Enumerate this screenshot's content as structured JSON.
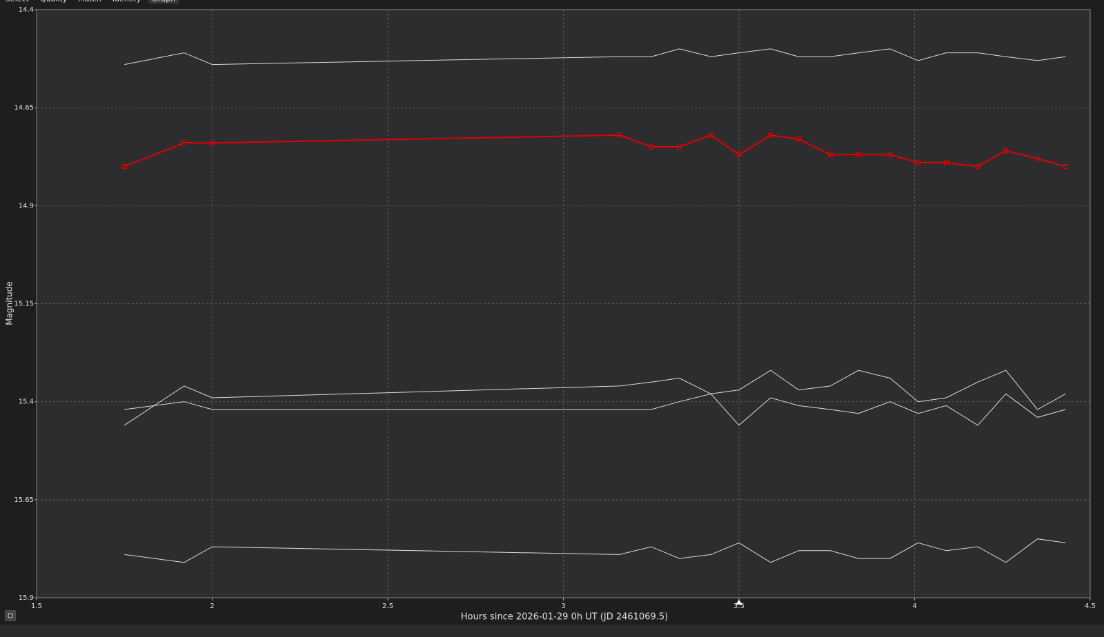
{
  "tabs": [
    "Select",
    "Quality",
    "Match",
    "Identify",
    "Graph"
  ],
  "chart_data": {
    "type": "line",
    "x_label": "Hours since 2026-01-29 0h UT (JD 2461069.5)",
    "y_label": "Magnitude",
    "x": [
      1.75,
      1.92,
      2.0,
      3.16,
      3.25,
      3.33,
      3.42,
      3.5,
      3.59,
      3.67,
      3.76,
      3.84,
      3.93,
      4.01,
      4.09,
      4.18,
      4.26,
      4.35,
      4.43
    ],
    "series": [
      {
        "color": "#dcdcdc",
        "values": [
          14.54,
          14.51,
          14.54,
          14.52,
          14.52,
          14.5,
          14.52,
          14.51,
          14.5,
          14.52,
          14.52,
          14.51,
          14.5,
          14.53,
          14.51,
          14.51,
          14.52,
          14.53,
          14.52
        ]
      },
      {
        "color": "#e00000",
        "marker": "square",
        "values": [
          14.8,
          14.74,
          14.74,
          14.72,
          14.75,
          14.75,
          14.72,
          14.77,
          14.72,
          14.73,
          14.77,
          14.77,
          14.77,
          14.79,
          14.79,
          14.8,
          14.76,
          14.78,
          14.8
        ]
      },
      {
        "color": "#dcdcdc",
        "values": [
          15.42,
          15.4,
          15.42,
          15.42,
          15.42,
          15.4,
          15.38,
          15.37,
          15.32,
          15.37,
          15.36,
          15.32,
          15.34,
          15.4,
          15.39,
          15.35,
          15.32,
          15.42,
          15.38
        ]
      },
      {
        "color": "#dcdcdc",
        "values": [
          15.46,
          15.36,
          15.39,
          15.36,
          15.35,
          15.34,
          15.38,
          15.46,
          15.39,
          15.41,
          15.42,
          15.43,
          15.4,
          15.43,
          15.41,
          15.46,
          15.38,
          15.44,
          15.42
        ]
      },
      {
        "color": "#dcdcdc",
        "values": [
          15.79,
          15.81,
          15.77,
          15.79,
          15.77,
          15.8,
          15.79,
          15.76,
          15.81,
          15.78,
          15.78,
          15.8,
          15.8,
          15.76,
          15.78,
          15.77,
          15.81,
          15.75,
          15.76
        ]
      }
    ],
    "xlim": [
      1.5,
      4.5
    ],
    "xticks": [
      1.5,
      2,
      2.5,
      3,
      3.5,
      4,
      4.5
    ],
    "ylim": [
      14.4,
      15.9
    ],
    "yticks": [
      14.4,
      14.65,
      14.9,
      15.15,
      15.4,
      15.65,
      15.9
    ],
    "y_inverted": true,
    "grid": true
  }
}
